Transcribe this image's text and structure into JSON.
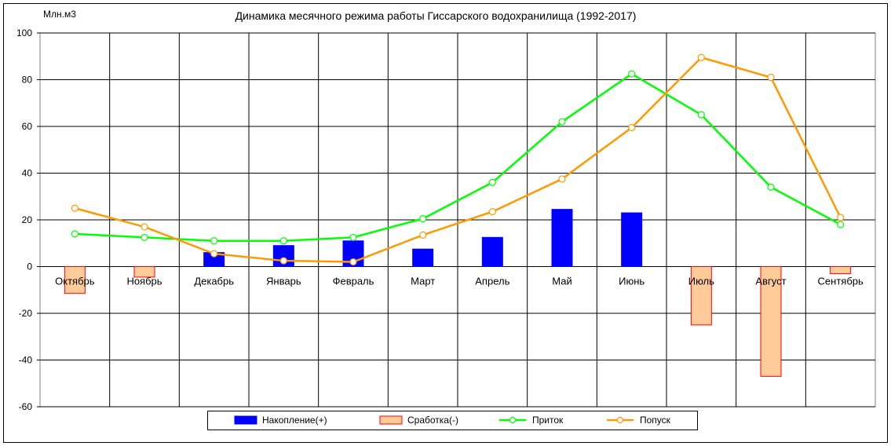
{
  "chart_data": {
    "type": "bar",
    "title": "Динамика месячного режима работы Гиссарского водохранилища (1992-2017)",
    "unit_label": "Млн.м3",
    "ylim": [
      -60,
      100
    ],
    "yticks": [
      100,
      80,
      60,
      40,
      20,
      0,
      -20,
      -40,
      -60
    ],
    "grid": true,
    "legend_position": "bottom",
    "categories": [
      "Октябрь",
      "Ноябрь",
      "Декабрь",
      "Январь",
      "Февраль",
      "Март",
      "Апрель",
      "Май",
      "Июнь",
      "Июль",
      "Август",
      "Сентябрь"
    ],
    "series": [
      {
        "name": "Накопление(+)",
        "kind": "bar",
        "color": "#0000ff",
        "stroke": "#0000ff",
        "values": [
          0,
          0,
          6,
          9,
          11,
          7.5,
          12.5,
          24.5,
          23,
          0,
          0,
          0
        ]
      },
      {
        "name": "Сработка(-)",
        "kind": "bar",
        "color": "#ffcc99",
        "stroke": "#ff0000",
        "values": [
          -11.5,
          -4.5,
          0,
          0,
          0,
          0,
          0,
          0,
          0,
          -25,
          -47,
          -3
        ]
      },
      {
        "name": "Приток",
        "kind": "line",
        "color": "#00ff00",
        "values": [
          14,
          12.5,
          11,
          11,
          12.5,
          20.5,
          36,
          62,
          82.5,
          65,
          34,
          18
        ]
      },
      {
        "name": "Попуск",
        "kind": "line",
        "color": "#ff9900",
        "values": [
          25,
          17,
          5.5,
          2.5,
          2,
          13.5,
          23.5,
          37.5,
          59.5,
          89.5,
          81,
          21
        ]
      }
    ]
  }
}
